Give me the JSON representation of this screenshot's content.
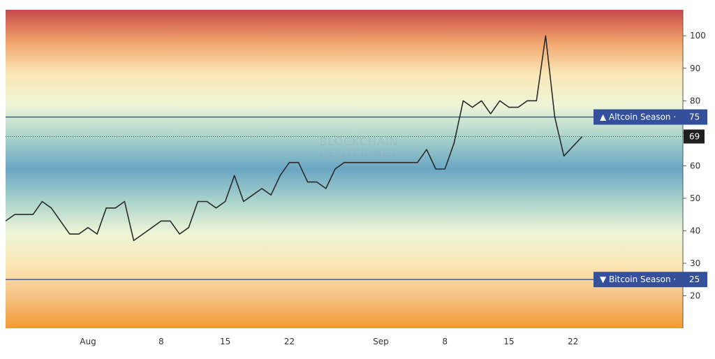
{
  "chart_data": {
    "type": "line",
    "y_axis": {
      "min": 10,
      "max": 108,
      "ticks": [
        20,
        30,
        40,
        50,
        60,
        70,
        80,
        90,
        100
      ],
      "tick_labels": [
        "20",
        "30",
        "40",
        "50",
        "60",
        "",
        "80",
        "90",
        "100"
      ],
      "side": "right"
    },
    "x_axis": {
      "ticks": [
        {
          "label": "Aug",
          "index": 13
        },
        {
          "label": "8",
          "index": 21
        },
        {
          "label": "15",
          "index": 28
        },
        {
          "label": "22",
          "index": 35
        },
        {
          "label": "Sep",
          "index": 45
        },
        {
          "label": "8",
          "index": 52
        },
        {
          "label": "15",
          "index": 59
        },
        {
          "label": "22",
          "index": 66
        }
      ],
      "index_start": 4,
      "index_end": 78
    },
    "series": [
      {
        "color": "#2a2a2a",
        "x": [
          4,
          5,
          6,
          7,
          8,
          9,
          10,
          11,
          12,
          13,
          14,
          15,
          16,
          17,
          18,
          19,
          20,
          21,
          22,
          23,
          24,
          25,
          26,
          27,
          28,
          29,
          30,
          31,
          32,
          33,
          34,
          35,
          36,
          37,
          38,
          39,
          40,
          41,
          42,
          43,
          44,
          45,
          46,
          47,
          48,
          49,
          50,
          51,
          52,
          53,
          54,
          55,
          56,
          57,
          58,
          59,
          60,
          61,
          62,
          63,
          64,
          65,
          66,
          67
        ],
        "y": [
          43,
          45,
          45,
          45,
          49,
          47,
          43,
          39,
          39,
          41,
          39,
          47,
          47,
          49,
          37,
          39,
          41,
          43,
          43,
          39,
          41,
          49,
          49,
          47,
          49,
          57,
          49,
          51,
          53,
          51,
          57,
          61,
          61,
          55,
          55,
          53,
          59,
          61,
          61,
          61,
          61,
          61,
          61,
          61,
          61,
          61,
          65,
          59,
          59,
          67,
          80,
          78,
          80,
          76,
          80,
          78,
          78,
          80,
          80,
          100,
          75,
          63,
          66,
          69
        ]
      }
    ],
    "reference_lines": [
      {
        "label": "Altcoin Season",
        "value": 75,
        "value_label": "75",
        "marker": "▲",
        "color": "#34509a"
      },
      {
        "label": "Bitcoin Season",
        "value": 25,
        "value_label": "25",
        "marker": "▼",
        "color": "#34509a"
      }
    ],
    "last_value": {
      "value": 69,
      "label": "69",
      "color": "#1f1f1f"
    },
    "watermark": [
      "BLOCKCHAIN",
      "CENTER.NET"
    ],
    "background_gradient": [
      "#c8494b",
      "#f0a36a",
      "#fbe7b6",
      "#eef5d7",
      "#a9d3cc",
      "#6aa6c3",
      "#a9d3cc",
      "#eef5d7",
      "#fbe7b6",
      "#f6c283",
      "#f29a34"
    ]
  }
}
